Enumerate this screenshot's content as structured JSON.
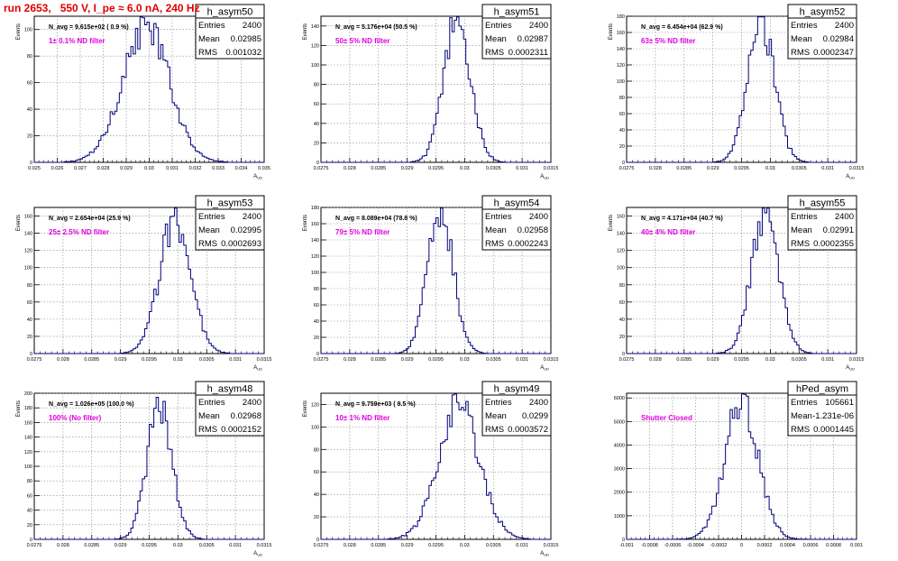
{
  "canvas_title": "run 2653,   550 V, I_pe ≈ 6.0 nA, 240 Hz",
  "colors": {
    "histogram": "#00007a",
    "label": "#e000e0",
    "title": "#e00000",
    "grid": "#888888"
  },
  "stats_labels": {
    "entries": "Entries",
    "mean": "Mean",
    "rms": "RMS"
  },
  "chart_data": [
    {
      "type": "bar",
      "name": "h_asym50",
      "navg_text": "N_avg = 9.615e+02 ( 0.9 %)",
      "label": "1± 0.1% ND filter",
      "stats": {
        "entries": "2400",
        "mean": "0.02985",
        "rms": "0.001032"
      },
      "xlim": [
        0.025,
        0.035
      ],
      "ylim": [
        0,
        110
      ],
      "xticks": [
        0.025,
        0.026,
        0.027,
        0.028,
        0.029,
        0.03,
        0.031,
        0.032,
        0.033,
        0.034,
        0.035
      ],
      "xtick_labels": [
        "0.025",
        "0.026",
        "0.027",
        "0.028",
        "0.029",
        "0.03",
        "0.031",
        "0.032",
        "0.033",
        "0.034",
        "0.035"
      ],
      "yticks": [
        0,
        20,
        40,
        60,
        80,
        100
      ],
      "xlabel": "A_UD",
      "ylabel": "Events",
      "mean": 0.02985,
      "sigma": 0.001032,
      "peak": 101,
      "bins": 100
    },
    {
      "type": "bar",
      "name": "h_asym51",
      "navg_text": "N_avg = 5.176e+04 (50.5 %)",
      "label": "50± 5% ND filter",
      "stats": {
        "entries": "2400",
        "mean": "0.02987",
        "rms": "0.0002311"
      },
      "xlim": [
        0.0275,
        0.0315
      ],
      "ylim": [
        0,
        150
      ],
      "xticks": [
        0.0275,
        0.028,
        0.0285,
        0.029,
        0.0295,
        0.03,
        0.0305,
        0.031,
        0.0315
      ],
      "xtick_labels": [
        "0.0275",
        "0.028",
        "0.0285",
        "0.029",
        "0.0295",
        "0.03",
        "0.0305",
        "0.031",
        "0.0315"
      ],
      "yticks": [
        0,
        20,
        40,
        60,
        80,
        100,
        120,
        140
      ],
      "xlabel": "A_UD",
      "ylabel": "Events",
      "mean": 0.02987,
      "sigma": 0.0002311,
      "peak": 146,
      "bins": 100
    },
    {
      "type": "bar",
      "name": "h_asym52",
      "navg_text": "N_avg = 6.454e+04 (62.9 %)",
      "label": "63± 5% ND filter",
      "stats": {
        "entries": "2400",
        "mean": "0.02984",
        "rms": "0.0002347"
      },
      "xlim": [
        0.0275,
        0.0315
      ],
      "ylim": [
        0,
        180
      ],
      "xticks": [
        0.0275,
        0.028,
        0.0285,
        0.029,
        0.0295,
        0.03,
        0.0305,
        0.031,
        0.0315
      ],
      "xtick_labels": [
        "0.0275",
        "0.028",
        "0.0285",
        "0.029",
        "0.0295",
        "0.03",
        "0.0305",
        "0.031",
        "0.0315"
      ],
      "yticks": [
        0,
        20,
        40,
        60,
        80,
        100,
        120,
        140,
        160,
        180
      ],
      "xlabel": "A_UD",
      "ylabel": "Events",
      "mean": 0.02984,
      "sigma": 0.0002347,
      "peak": 172,
      "bins": 100
    },
    {
      "type": "bar",
      "name": "h_asym53",
      "navg_text": "N_avg = 2.654e+04 (25.9 %)",
      "label": "25± 2.5% ND filter",
      "stats": {
        "entries": "2400",
        "mean": "0.02995",
        "rms": "0.0002693"
      },
      "xlim": [
        0.0275,
        0.0315
      ],
      "ylim": [
        0,
        170
      ],
      "xticks": [
        0.0275,
        0.028,
        0.0285,
        0.029,
        0.0295,
        0.03,
        0.0305,
        0.031,
        0.0315
      ],
      "xtick_labels": [
        "0.0275",
        "0.028",
        "0.0285",
        "0.029",
        "0.0295",
        "0.03",
        "0.0305",
        "0.031",
        "0.0315"
      ],
      "yticks": [
        0,
        20,
        40,
        60,
        80,
        100,
        120,
        140,
        160
      ],
      "xlabel": "A_UD",
      "ylabel": "Events",
      "mean": 0.02995,
      "sigma": 0.0002693,
      "peak": 158,
      "bins": 100
    },
    {
      "type": "bar",
      "name": "h_asym54",
      "navg_text": "N_avg = 8.089e+04 (78.8 %)",
      "label": "79± 5% ND filter",
      "stats": {
        "entries": "2400",
        "mean": "0.02958",
        "rms": "0.0002243"
      },
      "xlim": [
        0.0275,
        0.0315
      ],
      "ylim": [
        0,
        180
      ],
      "xticks": [
        0.0275,
        0.028,
        0.0285,
        0.029,
        0.0295,
        0.03,
        0.0305,
        0.031,
        0.0315
      ],
      "xtick_labels": [
        "0.0275",
        "0.028",
        "0.0285",
        "0.029",
        "0.0295",
        "0.03",
        "0.0305",
        "0.031",
        "0.0315"
      ],
      "yticks": [
        0,
        20,
        40,
        60,
        80,
        100,
        120,
        140,
        160,
        180
      ],
      "xlabel": "A_UD",
      "ylabel": "Events",
      "mean": 0.02958,
      "sigma": 0.0002243,
      "peak": 176,
      "bins": 100
    },
    {
      "type": "bar",
      "name": "h_asym55",
      "navg_text": "N_avg = 4.171e+04 (40.7 %)",
      "label": "40± 4% ND filter",
      "stats": {
        "entries": "2400",
        "mean": "0.02991",
        "rms": "0.0002355"
      },
      "xlim": [
        0.0275,
        0.0315
      ],
      "ylim": [
        0,
        170
      ],
      "xticks": [
        0.0275,
        0.028,
        0.0285,
        0.029,
        0.0295,
        0.03,
        0.0305,
        0.031,
        0.0315
      ],
      "xtick_labels": [
        "0.0275",
        "0.028",
        "0.0285",
        "0.029",
        "0.0295",
        "0.03",
        "0.0305",
        "0.031",
        "0.0315"
      ],
      "yticks": [
        0,
        20,
        40,
        60,
        80,
        100,
        120,
        140,
        160
      ],
      "xlabel": "A_UD",
      "ylabel": "Events",
      "mean": 0.02991,
      "sigma": 0.0002355,
      "peak": 162,
      "bins": 100
    },
    {
      "type": "bar",
      "name": "h_asym48",
      "navg_text": "N_avg = 1.026e+05 (100.0 %)",
      "label": "100% (No filter)",
      "stats": {
        "entries": "2400",
        "mean": "0.02968",
        "rms": "0.0002152"
      },
      "xlim": [
        0.0275,
        0.0315
      ],
      "ylim": [
        0,
        200
      ],
      "xticks": [
        0.0275,
        0.028,
        0.0285,
        0.029,
        0.0295,
        0.03,
        0.0305,
        0.031,
        0.0315
      ],
      "xtick_labels": [
        "0.0275",
        "0.028",
        "0.0285",
        "0.029",
        "0.0295",
        "0.03",
        "0.0305",
        "0.031",
        "0.0315"
      ],
      "yticks": [
        0,
        20,
        40,
        60,
        80,
        100,
        120,
        140,
        160,
        180,
        200
      ],
      "xlabel": "A_UD",
      "ylabel": "Events",
      "mean": 0.02968,
      "sigma": 0.0002152,
      "peak": 186,
      "bins": 100
    },
    {
      "type": "bar",
      "name": "h_asym49",
      "navg_text": "N_avg = 9.759e+03 ( 9.5 %)",
      "label": "10± 1% ND filter",
      "stats": {
        "entries": "2400",
        "mean": "0.0299",
        "rms": "0.0003572"
      },
      "xlim": [
        0.0275,
        0.0315
      ],
      "ylim": [
        0,
        130
      ],
      "xticks": [
        0.0275,
        0.028,
        0.0285,
        0.029,
        0.0295,
        0.03,
        0.0305,
        0.031,
        0.0315
      ],
      "xtick_labels": [
        "0.0275",
        "0.028",
        "0.0285",
        "0.029",
        "0.0295",
        "0.03",
        "0.0305",
        "0.031",
        "0.0315"
      ],
      "yticks": [
        0,
        20,
        40,
        60,
        80,
        100,
        120
      ],
      "xlabel": "A_UD",
      "ylabel": "Events",
      "mean": 0.0299,
      "sigma": 0.0003572,
      "peak": 120,
      "bins": 100
    },
    {
      "type": "bar",
      "name": "hPed_asym",
      "navg_text": "",
      "label": "Shutter Closed",
      "stats": {
        "entries": "105661",
        "mean": "-1.231e-06",
        "rms": "0.0001445"
      },
      "xlim": [
        -0.001,
        0.001
      ],
      "ylim": [
        0,
        6200
      ],
      "xticks": [
        -0.001,
        -0.0008,
        -0.0006,
        -0.0004,
        -0.0002,
        0,
        0.0002,
        0.0004,
        0.0006,
        0.0008,
        0.001
      ],
      "xtick_labels": [
        "-0.001",
        "-0.0008",
        "-0.0006",
        "-0.0004",
        "-0.0002",
        "0",
        "0.0002",
        "0.0004",
        "0.0006",
        "0.0008",
        "0.001"
      ],
      "yticks": [
        0,
        1000,
        2000,
        3000,
        4000,
        5000,
        6000
      ],
      "xlabel": "",
      "ylabel": "",
      "mean": -1.231e-06,
      "sigma": 0.0001445,
      "peak": 5800,
      "bins": 100
    }
  ]
}
